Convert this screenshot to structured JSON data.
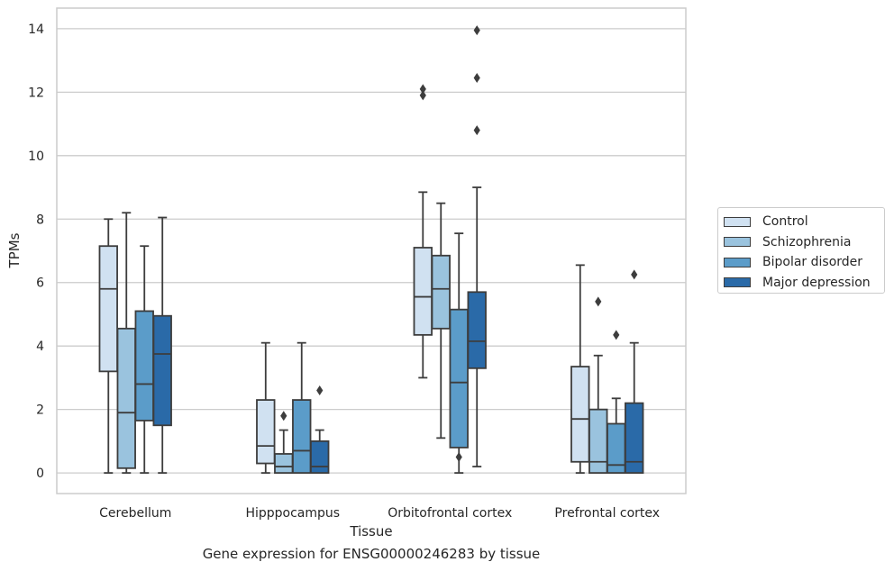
{
  "caption": "Gene expression for ENSG00000246283 by tissue",
  "chart_data": {
    "type": "box",
    "xlabel": "Tissue",
    "ylabel": "TPMs",
    "ylim": [
      -0.65,
      14.65
    ],
    "yticks": [
      0,
      2,
      4,
      6,
      8,
      10,
      12,
      14
    ],
    "grid": true,
    "legend_position": "right",
    "categories": [
      "Cerebellum",
      "Hipppocampus",
      "Orbitofrontal cortex",
      "Prefrontal cortex"
    ],
    "series": [
      {
        "name": "Control",
        "color": "#d0e1f1",
        "boxes": [
          {
            "min": 0.0,
            "q1": 3.2,
            "median": 5.8,
            "q3": 7.15,
            "max": 8.0,
            "outliers": []
          },
          {
            "min": 0.0,
            "q1": 0.3,
            "median": 0.85,
            "q3": 2.3,
            "max": 4.1,
            "outliers": []
          },
          {
            "min": 3.0,
            "q1": 4.35,
            "median": 5.55,
            "q3": 7.1,
            "max": 8.85,
            "outliers": [
              11.9,
              12.1
            ]
          },
          {
            "min": 0.0,
            "q1": 0.35,
            "median": 1.7,
            "q3": 3.35,
            "max": 6.55,
            "outliers": []
          }
        ]
      },
      {
        "name": "Schizophrenia",
        "color": "#9ac3de",
        "boxes": [
          {
            "min": 0.0,
            "q1": 0.15,
            "median": 1.9,
            "q3": 4.55,
            "max": 8.2,
            "outliers": []
          },
          {
            "min": 0.0,
            "q1": 0.0,
            "median": 0.2,
            "q3": 0.6,
            "max": 1.35,
            "outliers": [
              1.8
            ]
          },
          {
            "min": 1.1,
            "q1": 4.55,
            "median": 5.8,
            "q3": 6.85,
            "max": 8.5,
            "outliers": []
          },
          {
            "min": 0.0,
            "q1": 0.0,
            "median": 0.35,
            "q3": 2.0,
            "max": 3.7,
            "outliers": [
              5.4
            ]
          }
        ]
      },
      {
        "name": "Bipolar disorder",
        "color": "#5b9cc9",
        "boxes": [
          {
            "min": 0.0,
            "q1": 1.65,
            "median": 2.8,
            "q3": 5.1,
            "max": 7.15,
            "outliers": []
          },
          {
            "min": 0.0,
            "q1": 0.0,
            "median": 0.7,
            "q3": 2.3,
            "max": 4.1,
            "outliers": []
          },
          {
            "min": 0.0,
            "q1": 0.8,
            "median": 2.85,
            "q3": 5.15,
            "max": 7.55,
            "outliers": [
              0.5
            ]
          },
          {
            "min": 0.0,
            "q1": 0.0,
            "median": 0.25,
            "q3": 1.55,
            "max": 2.35,
            "outliers": [
              4.35
            ]
          }
        ]
      },
      {
        "name": "Major depression",
        "color": "#2a6aa8",
        "boxes": [
          {
            "min": 0.0,
            "q1": 1.5,
            "median": 3.75,
            "q3": 4.95,
            "max": 8.05,
            "outliers": []
          },
          {
            "min": 0.0,
            "q1": 0.0,
            "median": 0.2,
            "q3": 1.0,
            "max": 1.35,
            "outliers": [
              2.6
            ]
          },
          {
            "min": 0.2,
            "q1": 3.3,
            "median": 4.15,
            "q3": 5.7,
            "max": 9.0,
            "outliers": [
              10.8,
              12.45,
              13.95
            ]
          },
          {
            "min": 0.0,
            "q1": 0.0,
            "median": 0.35,
            "q3": 2.2,
            "max": 4.1,
            "outliers": [
              6.25
            ]
          }
        ]
      }
    ]
  }
}
